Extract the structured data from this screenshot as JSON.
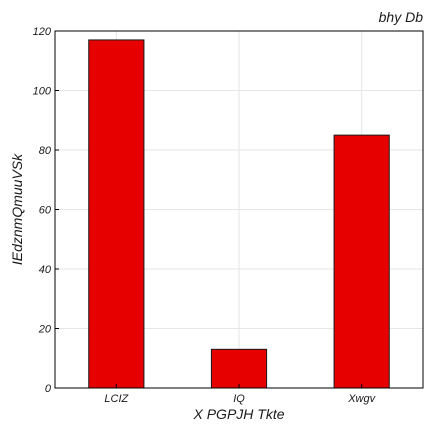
{
  "chart_data": {
    "type": "bar",
    "title": "bhy  Db",
    "xlabel": "X PGPJH Tkte",
    "ylabel": "IEdznmQmuuVSk",
    "categories": [
      "LCIZ",
      "IQ",
      "Xwgv"
    ],
    "values": [
      117,
      13,
      85
    ],
    "ylim": [
      0,
      120
    ],
    "yticks": [
      0,
      20,
      40,
      60,
      80,
      100,
      120
    ],
    "grid": true,
    "bar_color": "#e60000"
  }
}
